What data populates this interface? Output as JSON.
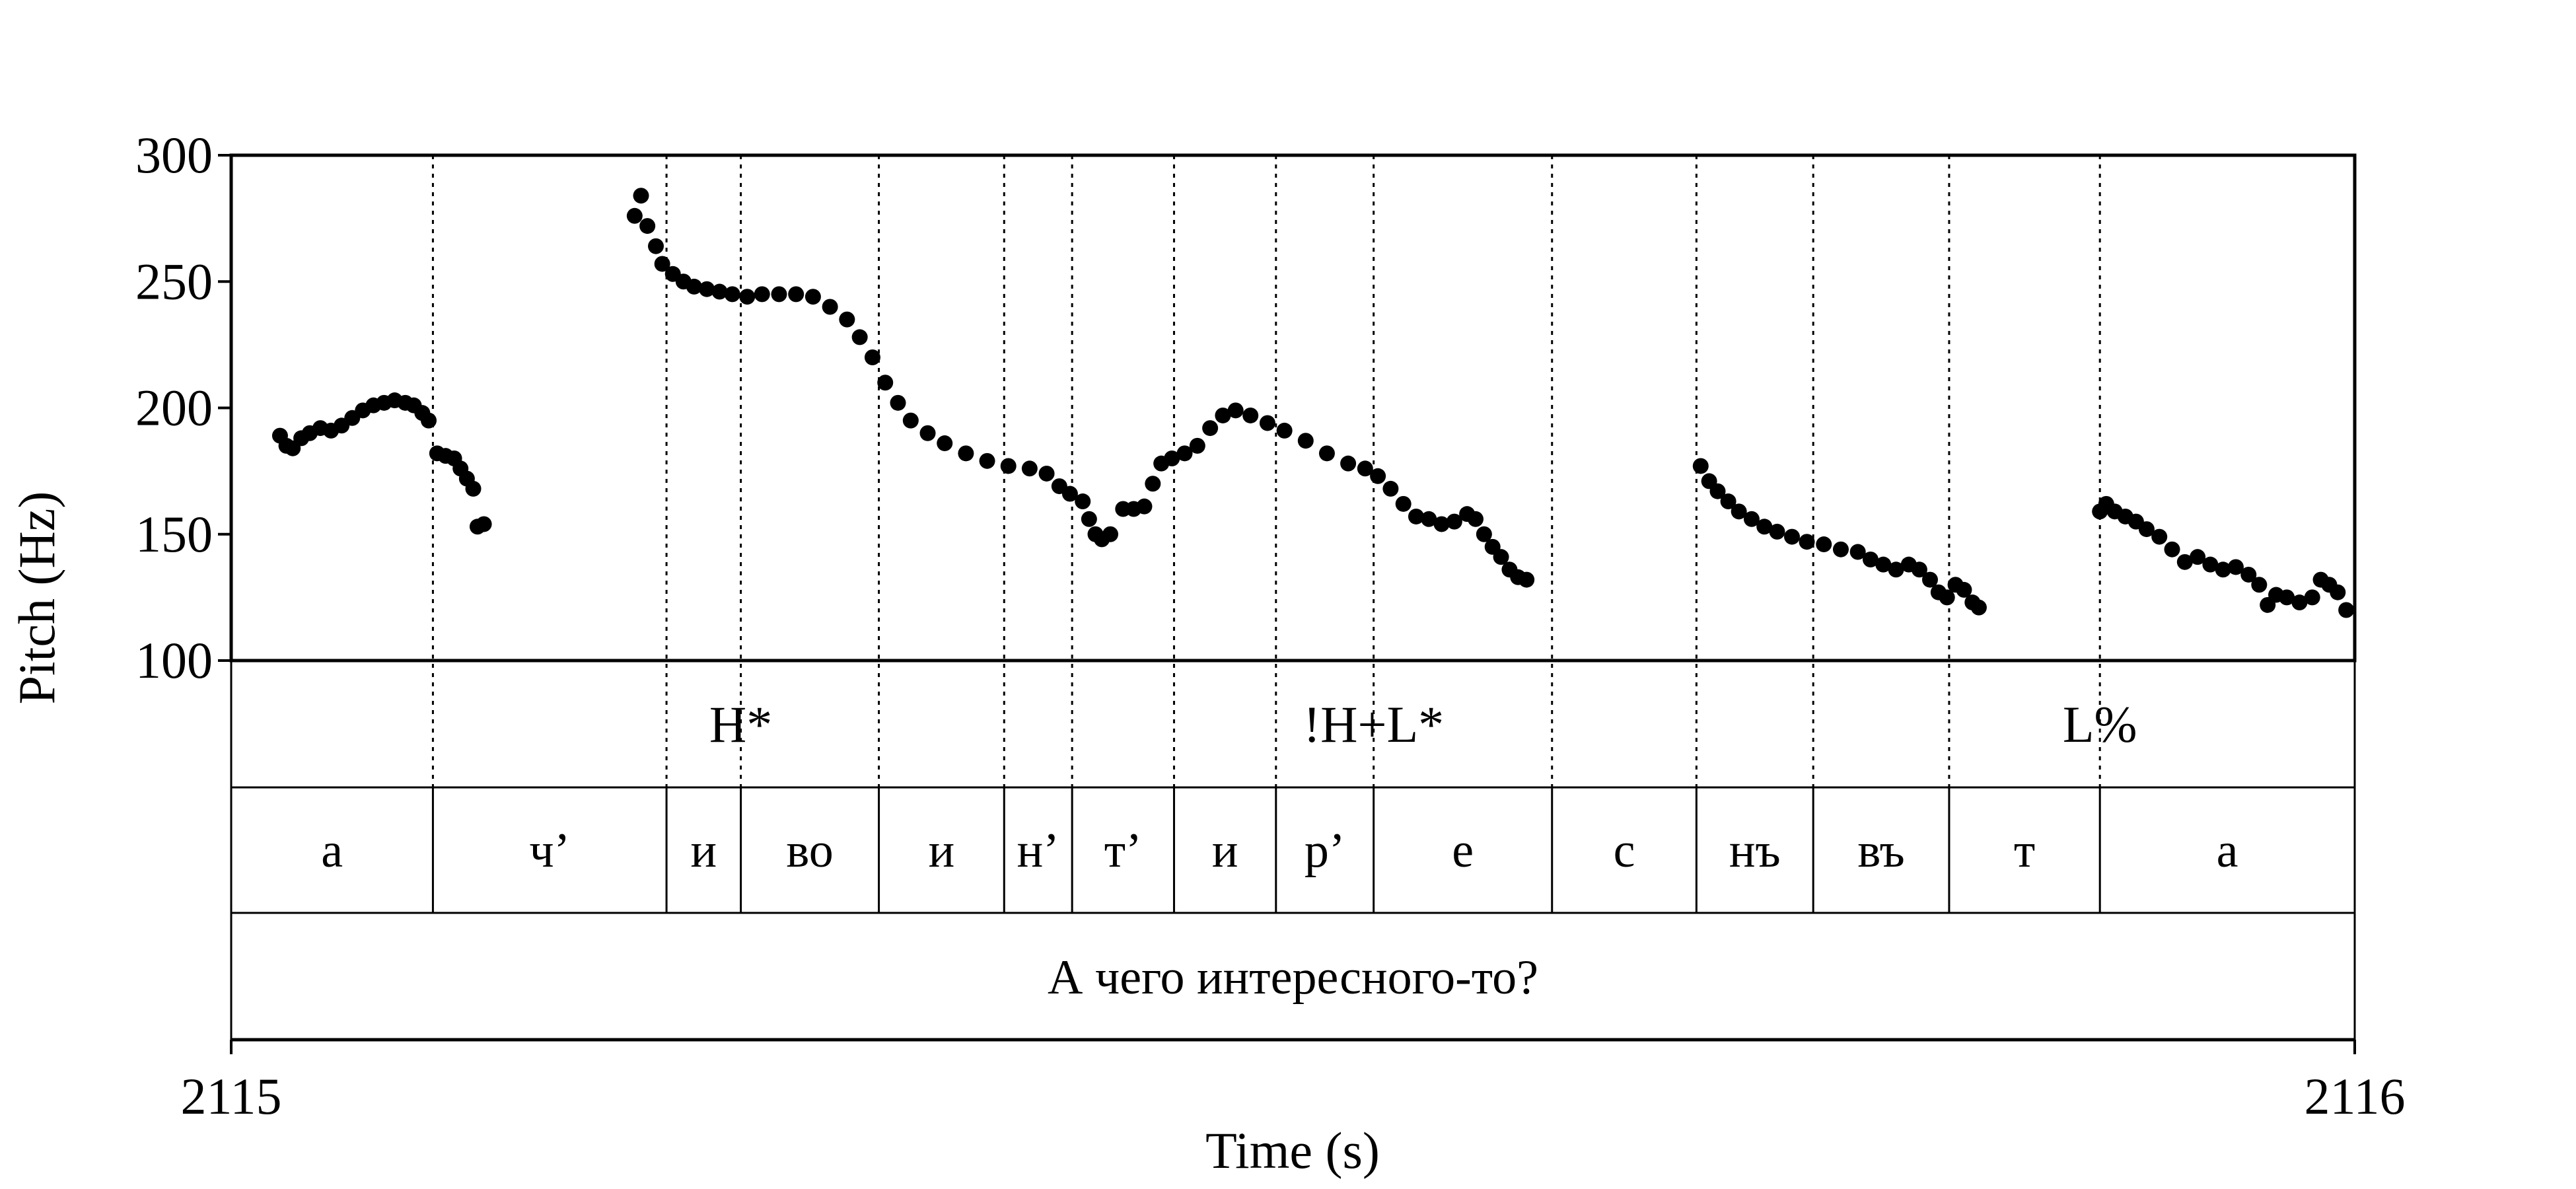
{
  "chart_data": {
    "type": "scatter",
    "xlabel": "Time (s)",
    "ylabel": "Pitch (Hz)",
    "xlim": [
      2115,
      2116
    ],
    "ylim": [
      100,
      300
    ],
    "x_tick_labels": [
      "2115",
      "2116"
    ],
    "y_ticks": [
      100,
      150,
      200,
      250,
      300
    ],
    "grid": false,
    "point_color": "#000000",
    "boundaries": [
      2115.095,
      2115.205,
      2115.24,
      2115.305,
      2115.364,
      2115.396,
      2115.444,
      2115.492,
      2115.538,
      2115.622,
      2115.69,
      2115.745,
      2115.809,
      2115.88
    ],
    "tones": [
      {
        "label": "H*",
        "time": 2115.24
      },
      {
        "label": "!H+L*",
        "time": 2115.538
      },
      {
        "label": "L%",
        "time": 2115.88
      }
    ],
    "segments": [
      {
        "label": "а",
        "start": 2115.0,
        "end": 2115.095
      },
      {
        "label": "ч’",
        "start": 2115.095,
        "end": 2115.205
      },
      {
        "label": "и",
        "start": 2115.205,
        "end": 2115.24
      },
      {
        "label": "во",
        "start": 2115.24,
        "end": 2115.305
      },
      {
        "label": "и",
        "start": 2115.305,
        "end": 2115.364
      },
      {
        "label": "н’",
        "start": 2115.364,
        "end": 2115.396
      },
      {
        "label": "т’",
        "start": 2115.396,
        "end": 2115.444
      },
      {
        "label": "и",
        "start": 2115.444,
        "end": 2115.492
      },
      {
        "label": "р’",
        "start": 2115.492,
        "end": 2115.538
      },
      {
        "label": "е",
        "start": 2115.538,
        "end": 2115.622
      },
      {
        "label": "с",
        "start": 2115.622,
        "end": 2115.69
      },
      {
        "label": "нъ",
        "start": 2115.69,
        "end": 2115.745
      },
      {
        "label": "въ",
        "start": 2115.745,
        "end": 2115.809
      },
      {
        "label": "т",
        "start": 2115.809,
        "end": 2115.88
      },
      {
        "label": "а",
        "start": 2115.88,
        "end": 2116.0
      }
    ],
    "sentence": "А чего интересного-то?",
    "pitch_curves": [
      [
        [
          2115.023,
          189
        ],
        [
          2115.026,
          185
        ],
        [
          2115.029,
          184
        ],
        [
          2115.033,
          188
        ],
        [
          2115.037,
          190
        ],
        [
          2115.042,
          192
        ],
        [
          2115.047,
          191
        ],
        [
          2115.052,
          193
        ],
        [
          2115.057,
          196
        ],
        [
          2115.062,
          199
        ],
        [
          2115.067,
          201
        ],
        [
          2115.072,
          202
        ],
        [
          2115.077,
          203
        ],
        [
          2115.082,
          202
        ],
        [
          2115.086,
          201
        ],
        [
          2115.09,
          198
        ],
        [
          2115.093,
          195
        ]
      ],
      [
        [
          2115.097,
          182
        ],
        [
          2115.101,
          181
        ],
        [
          2115.105,
          180
        ],
        [
          2115.108,
          176
        ],
        [
          2115.111,
          172
        ],
        [
          2115.114,
          168
        ],
        [
          2115.116,
          153
        ],
        [
          2115.119,
          154
        ]
      ],
      [
        [
          2115.19,
          276
        ],
        [
          2115.193,
          284
        ],
        [
          2115.196,
          272
        ],
        [
          2115.2,
          264
        ],
        [
          2115.203,
          257
        ],
        [
          2115.208,
          253
        ],
        [
          2115.213,
          250
        ],
        [
          2115.218,
          248
        ],
        [
          2115.224,
          247
        ],
        [
          2115.23,
          246
        ],
        [
          2115.236,
          245
        ],
        [
          2115.243,
          244
        ],
        [
          2115.25,
          245
        ],
        [
          2115.258,
          245
        ],
        [
          2115.266,
          245
        ],
        [
          2115.274,
          244
        ],
        [
          2115.282,
          240
        ],
        [
          2115.29,
          235
        ],
        [
          2115.296,
          228
        ],
        [
          2115.302,
          220
        ],
        [
          2115.308,
          210
        ],
        [
          2115.314,
          202
        ],
        [
          2115.32,
          195
        ],
        [
          2115.328,
          190
        ],
        [
          2115.336,
          186
        ],
        [
          2115.346,
          182
        ],
        [
          2115.356,
          179
        ],
        [
          2115.366,
          177
        ],
        [
          2115.376,
          176
        ],
        [
          2115.384,
          174
        ],
        [
          2115.39,
          169
        ],
        [
          2115.395,
          166
        ],
        [
          2115.401,
          163
        ],
        [
          2115.404,
          156
        ],
        [
          2115.407,
          150
        ],
        [
          2115.41,
          148
        ],
        [
          2115.414,
          150
        ]
      ],
      [
        [
          2115.42,
          160
        ],
        [
          2115.425,
          160
        ],
        [
          2115.43,
          161
        ],
        [
          2115.434,
          170
        ],
        [
          2115.438,
          178
        ],
        [
          2115.443,
          180
        ],
        [
          2115.449,
          182
        ],
        [
          2115.455,
          185
        ],
        [
          2115.461,
          192
        ],
        [
          2115.467,
          197
        ],
        [
          2115.473,
          199
        ],
        [
          2115.48,
          197
        ],
        [
          2115.488,
          194
        ],
        [
          2115.496,
          191
        ],
        [
          2115.506,
          187
        ],
        [
          2115.516,
          182
        ],
        [
          2115.526,
          178
        ],
        [
          2115.534,
          176
        ],
        [
          2115.54,
          173
        ],
        [
          2115.546,
          168
        ],
        [
          2115.552,
          162
        ],
        [
          2115.558,
          157
        ],
        [
          2115.564,
          156
        ],
        [
          2115.57,
          154
        ],
        [
          2115.576,
          155
        ],
        [
          2115.582,
          158
        ],
        [
          2115.586,
          156
        ],
        [
          2115.59,
          150
        ],
        [
          2115.594,
          145
        ],
        [
          2115.598,
          141
        ],
        [
          2115.602,
          136
        ],
        [
          2115.606,
          133
        ],
        [
          2115.61,
          132
        ]
      ],
      [
        [
          2115.692,
          177
        ],
        [
          2115.696,
          171
        ],
        [
          2115.7,
          167
        ],
        [
          2115.705,
          163
        ],
        [
          2115.71,
          159
        ],
        [
          2115.716,
          156
        ],
        [
          2115.722,
          153
        ],
        [
          2115.728,
          151
        ],
        [
          2115.735,
          149
        ],
        [
          2115.742,
          147
        ],
        [
          2115.75,
          146
        ],
        [
          2115.758,
          144
        ],
        [
          2115.766,
          143
        ],
        [
          2115.772,
          140
        ],
        [
          2115.778,
          138
        ],
        [
          2115.784,
          136
        ],
        [
          2115.79,
          138
        ],
        [
          2115.795,
          136
        ],
        [
          2115.8,
          132
        ],
        [
          2115.804,
          127
        ],
        [
          2115.808,
          125
        ],
        [
          2115.812,
          130
        ],
        [
          2115.816,
          128
        ],
        [
          2115.82,
          123
        ],
        [
          2115.823,
          121
        ]
      ],
      [
        [
          2115.88,
          159
        ],
        [
          2115.883,
          162
        ],
        [
          2115.887,
          159
        ],
        [
          2115.892,
          157
        ],
        [
          2115.897,
          155
        ],
        [
          2115.902,
          152
        ],
        [
          2115.908,
          149
        ],
        [
          2115.914,
          144
        ],
        [
          2115.92,
          139
        ],
        [
          2115.926,
          141
        ],
        [
          2115.932,
          138
        ],
        [
          2115.938,
          136
        ],
        [
          2115.944,
          137
        ],
        [
          2115.95,
          134
        ],
        [
          2115.955,
          130
        ],
        [
          2115.959,
          122
        ],
        [
          2115.963,
          126
        ],
        [
          2115.968,
          125
        ],
        [
          2115.974,
          123
        ],
        [
          2115.98,
          125
        ],
        [
          2115.984,
          132
        ],
        [
          2115.988,
          130
        ],
        [
          2115.992,
          127
        ],
        [
          2115.996,
          120
        ]
      ]
    ]
  }
}
